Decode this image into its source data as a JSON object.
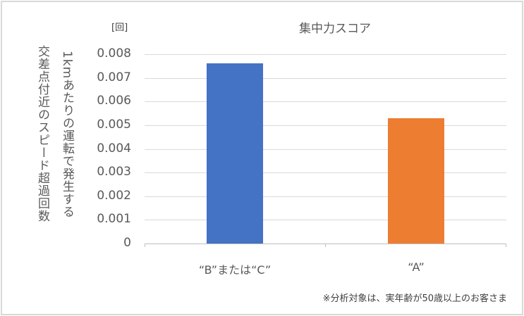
{
  "chart_data": {
    "type": "bar",
    "title": "集中力スコア",
    "unit_label": "[回]",
    "ylabel_line1": "交差点付近のスピード超過回数",
    "ylabel_line2": "1kmあたりの運転で発生する",
    "xlabel": "",
    "categories": [
      "“B”または“C”",
      "“A”"
    ],
    "values": [
      0.0076,
      0.0053
    ],
    "colors": [
      "#4472C4",
      "#ED7D31"
    ],
    "ylim": [
      0,
      0.008
    ],
    "yticks": [
      "0.008",
      "0.007",
      "0.006",
      "0.005",
      "0.004",
      "0.003",
      "0.002",
      "0.001",
      "0"
    ],
    "grid": true,
    "legend": "none",
    "note": "※分析対象は、実年齢が50歳以上のお客さま"
  }
}
